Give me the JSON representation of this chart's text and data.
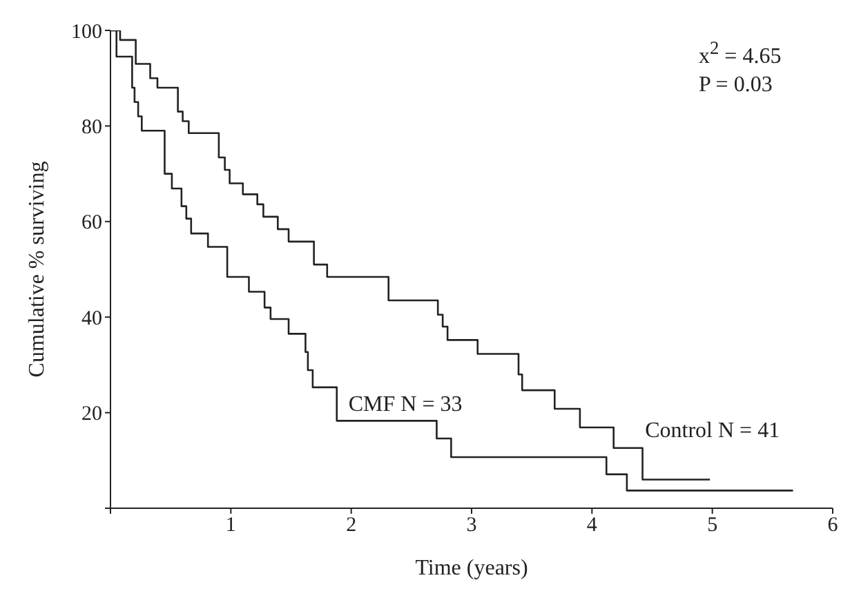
{
  "chart_data": {
    "type": "step",
    "xlabel": "Time (years)",
    "ylabel": "Cumulative % surviving",
    "xlim": [
      0,
      6
    ],
    "xticks": [
      {
        "value": 0,
        "label": null
      },
      1,
      2,
      3,
      4,
      5,
      6
    ],
    "ylim": [
      0,
      100
    ],
    "yticks": [
      {
        "value": 0,
        "label": null
      },
      20,
      40,
      60,
      80,
      100
    ],
    "marker": "none",
    "line_style": "solid",
    "annotations": [
      "x$^{2}$ = 4.65",
      "P = 0.03"
    ],
    "series": [
      {
        "name": "Control N = 41",
        "color": "#222222",
        "x": [
          0,
          0.08,
          0.21,
          0.33,
          0.39,
          0.56,
          0.6,
          0.65,
          0.9,
          0.95,
          0.99,
          1.1,
          1.22,
          1.27,
          1.39,
          1.48,
          1.69,
          1.8,
          2.31,
          2.72,
          2.76,
          2.8,
          3.05,
          3.39,
          3.42,
          3.69,
          3.9,
          4.18,
          4.42,
          4.98
        ],
        "values": [
          100,
          98,
          93,
          90,
          88,
          83,
          81,
          78.5,
          73.4,
          70.8,
          68,
          65.7,
          63.6,
          61,
          58.4,
          55.8,
          51,
          48.4,
          43.5,
          40.5,
          38,
          35.2,
          32.3,
          28,
          24.7,
          20.8,
          16.9,
          12.6,
          6,
          6
        ]
      },
      {
        "name": "CMF N = 33",
        "color": "#222222",
        "x": [
          0,
          0.05,
          0.18,
          0.2,
          0.23,
          0.26,
          0.45,
          0.51,
          0.59,
          0.63,
          0.67,
          0.81,
          0.97,
          1.15,
          1.28,
          1.33,
          1.48,
          1.62,
          1.64,
          1.68,
          1.88,
          2.71,
          2.83,
          4.12,
          4.29,
          5.67
        ],
        "values": [
          100,
          94.5,
          88,
          85,
          82,
          79,
          70,
          66.9,
          63.2,
          60.6,
          57.5,
          54.7,
          48.4,
          45.3,
          42,
          39.6,
          36.5,
          32.7,
          28.9,
          25.3,
          18.3,
          14.6,
          10.7,
          7.1,
          3.7,
          3.7
        ]
      }
    ]
  }
}
